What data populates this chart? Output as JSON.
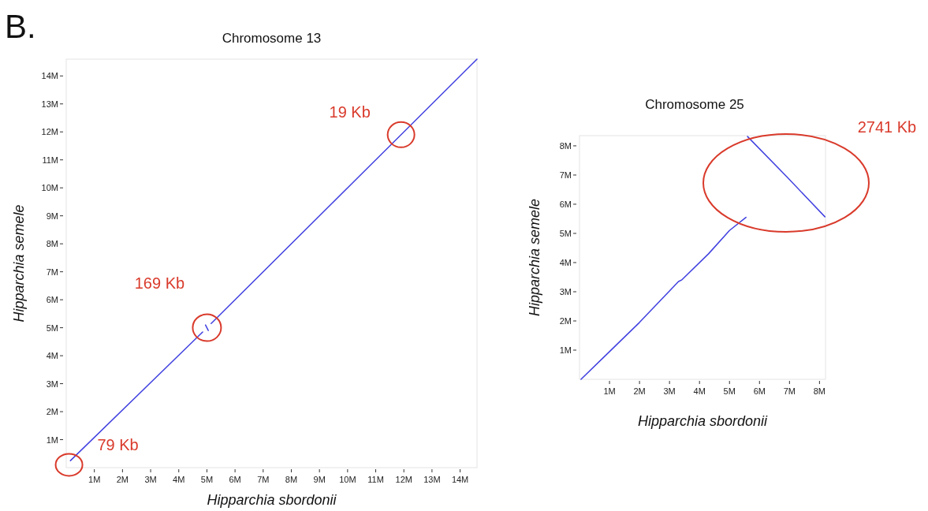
{
  "chart_data": [
    {
      "type": "line",
      "title": "Chromosome 13",
      "xlabel": "Hipparchia sbordonii",
      "ylabel": "Hipparchia semele",
      "xlim": [
        0,
        14.6
      ],
      "ylim": [
        0,
        14.6
      ],
      "xticks": [
        {
          "value": 1,
          "label": "1M"
        },
        {
          "value": 2,
          "label": "2M"
        },
        {
          "value": 3,
          "label": "3M"
        },
        {
          "value": 4,
          "label": "4M"
        },
        {
          "value": 5,
          "label": "5M"
        },
        {
          "value": 6,
          "label": "6M"
        },
        {
          "value": 7,
          "label": "7M"
        },
        {
          "value": 8,
          "label": "8M"
        },
        {
          "value": 9,
          "label": "9M"
        },
        {
          "value": 10,
          "label": "10M"
        },
        {
          "value": 11,
          "label": "11M"
        },
        {
          "value": 12,
          "label": "12M"
        },
        {
          "value": 13,
          "label": "13M"
        },
        {
          "value": 14,
          "label": "14M"
        }
      ],
      "yticks": [
        {
          "value": 1,
          "label": "1M"
        },
        {
          "value": 2,
          "label": "2M"
        },
        {
          "value": 3,
          "label": "3M"
        },
        {
          "value": 4,
          "label": "4M"
        },
        {
          "value": 5,
          "label": "5M"
        },
        {
          "value": 6,
          "label": "6M"
        },
        {
          "value": 7,
          "label": "7M"
        },
        {
          "value": 8,
          "label": "8M"
        },
        {
          "value": 9,
          "label": "9M"
        },
        {
          "value": 10,
          "label": "10M"
        },
        {
          "value": 11,
          "label": "11M"
        },
        {
          "value": 12,
          "label": "12M"
        },
        {
          "value": 13,
          "label": "13M"
        },
        {
          "value": 14,
          "label": "14M"
        }
      ],
      "series": [
        {
          "color": "#4040e0",
          "x": [
            0.15,
            4.85
          ],
          "values": [
            0.25,
            4.85
          ]
        },
        {
          "color": "#4040e0",
          "x": [
            4.95,
            5.05
          ],
          "values": [
            5.1,
            4.9
          ]
        },
        {
          "color": "#4040e0",
          "x": [
            5.15,
            14.6
          ],
          "values": [
            5.15,
            14.6
          ]
        }
      ],
      "annotations": [
        "B.",
        {
          "text": "79 Kb",
          "x": 0.1,
          "y": 0.1
        },
        {
          "text": "169 Kb",
          "x": 5,
          "y": 5
        },
        {
          "text": "19 Kb",
          "x": 11.9,
          "y": 11.9
        }
      ]
    },
    {
      "type": "line",
      "title": "Chromosome 25",
      "xlabel": "Hipparchia sbordonii",
      "ylabel": "Hipparchia semele",
      "xlim": [
        0,
        8.2
      ],
      "ylim": [
        0,
        8.35
      ],
      "xticks": [
        {
          "value": 1,
          "label": "1M"
        },
        {
          "value": 2,
          "label": "2M"
        },
        {
          "value": 3,
          "label": "3M"
        },
        {
          "value": 4,
          "label": "4M"
        },
        {
          "value": 5,
          "label": "5M"
        },
        {
          "value": 6,
          "label": "6M"
        },
        {
          "value": 7,
          "label": "7M"
        },
        {
          "value": 8,
          "label": "8M"
        }
      ],
      "yticks": [
        {
          "value": 1,
          "label": "1M"
        },
        {
          "value": 2,
          "label": "2M"
        },
        {
          "value": 3,
          "label": "3M"
        },
        {
          "value": 4,
          "label": "4M"
        },
        {
          "value": 5,
          "label": "5M"
        },
        {
          "value": 6,
          "label": "6M"
        },
        {
          "value": 7,
          "label": "7M"
        },
        {
          "value": 8,
          "label": "8M"
        }
      ],
      "series": [
        {
          "color": "#4040e0",
          "x": [
            0.05,
            1.0,
            2.0,
            3.3,
            3.4,
            4.3,
            5.0,
            5.55
          ],
          "values": [
            0.0,
            0.95,
            1.95,
            3.35,
            3.4,
            4.3,
            5.1,
            5.55
          ]
        },
        {
          "color": "#4040e0",
          "x": [
            5.6,
            6.9,
            8.18
          ],
          "values": [
            8.32,
            6.95,
            5.57
          ]
        }
      ],
      "annotations": [
        "2741 Kb"
      ]
    }
  ]
}
